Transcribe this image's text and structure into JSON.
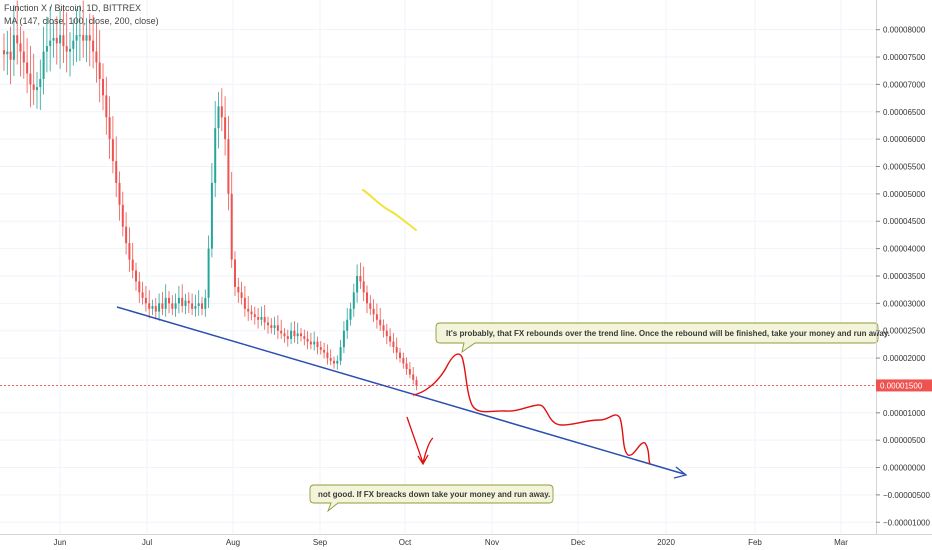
{
  "chart_data": {
    "type": "candlestick",
    "title": "Function X / Bitcoin, 1D, BITTREX",
    "indicator": "MA (147, close, 100, close, 200, close)",
    "x_ticks": [
      "Jun",
      "Jul",
      "Aug",
      "Sep",
      "Oct",
      "Nov",
      "Dec",
      "2020",
      "Feb",
      "Mar"
    ],
    "y_ticks": [
      "0.00008000",
      "0.00007500",
      "0.00007000",
      "0.00006500",
      "0.00006000",
      "0.00005500",
      "0.00005000",
      "0.00004500",
      "0.00004000",
      "0.00003500",
      "0.00003000",
      "0.00002500",
      "0.00002000",
      "0.00001500",
      "0.00001000",
      "0.00000500",
      "0.00000000",
      "−0.00000500",
      "−0.00001000"
    ],
    "ylim": [
      -1.05e-05,
      8.25e-05
    ],
    "last_price": "0.00001500",
    "last_price_value": 1.5e-05,
    "colors": {
      "up": "#26a69a",
      "down": "#ef5350",
      "trend": "#2a4fb0",
      "annotation": "#e01010",
      "highlight": "#f4e94a",
      "note_bg": "#f3f4da",
      "note_border": "#8c9c3a"
    },
    "price_series": [
      7.55e-05,
      7.6e-05,
      7.45e-05,
      7.9e-05,
      7.75e-05,
      7.6e-05,
      7.4e-05,
      7.2e-05,
      7e-05,
      6.9e-05,
      6.95e-05,
      7.1e-05,
      7.6e-05,
      7.7e-05,
      7.8e-05,
      7.85e-05,
      7.75e-05,
      7.9e-05,
      7.7e-05,
      7.6e-05,
      7.65e-05,
      7.8e-05,
      7.9e-05,
      7.9e-05,
      7.8e-05,
      7.9e-05,
      7.8e-05,
      7.6e-05,
      7.4e-05,
      7.1e-05,
      6.8e-05,
      6.4e-05,
      6e-05,
      5.6e-05,
      5.2e-05,
      4.8e-05,
      4.4e-05,
      4.1e-05,
      3.8e-05,
      3.6e-05,
      3.4e-05,
      3.2e-05,
      3.1e-05,
      3e-05,
      2.9e-05,
      2.95e-05,
      2.85e-05,
      3e-05,
      2.9e-05,
      3.1e-05,
      3e-05,
      2.9e-05,
      3e-05,
      3.1e-05,
      2.95e-05,
      3.05e-05,
      3e-05,
      2.9e-05,
      2.95e-05,
      3e-05,
      2.9e-05,
      3.1e-05,
      4e-05,
      5.2e-05,
      6.2e-05,
      6.6e-05,
      6.4e-05,
      6e-05,
      5e-05,
      3.8e-05,
      3.3e-05,
      3.2e-05,
      3.1e-05,
      2.9e-05,
      2.85e-05,
      2.8e-05,
      2.75e-05,
      2.7e-05,
      2.75e-05,
      2.65e-05,
      2.6e-05,
      2.55e-05,
      2.6e-05,
      2.5e-05,
      2.45e-05,
      2.4e-05,
      2.35e-05,
      2.5e-05,
      2.4e-05,
      2.45e-05,
      2.4e-05,
      2.35e-05,
      2.3e-05,
      2.25e-05,
      2.3e-05,
      2.2e-05,
      2.15e-05,
      2.1e-05,
      2e-05,
      1.95e-05,
      1.9e-05,
      1.95e-05,
      2.2e-05,
      2.5e-05,
      2.7e-05,
      2.9e-05,
      3.2e-05,
      3.5e-05,
      3.4e-05,
      3.2e-05,
      3e-05,
      2.9e-05,
      2.8e-05,
      2.7e-05,
      2.6e-05,
      2.5e-05,
      2.4e-05,
      2.3e-05,
      2.2e-05,
      2.1e-05,
      2e-05,
      1.9e-05,
      1.8e-05,
      1.7e-05,
      1.6e-05,
      1.5e-05
    ],
    "trend_line": [
      [
        2.9e-05,
        2.7e-05
      ],
      [
        3e-06,
        5e-07
      ]
    ],
    "annotations": [
      {
        "text": "It's probably, that FX rebounds over the trend line. Once the rebound will be finished, take your money and run away."
      },
      {
        "text": "not good.  If FX breacks down take your money and run away."
      }
    ]
  }
}
